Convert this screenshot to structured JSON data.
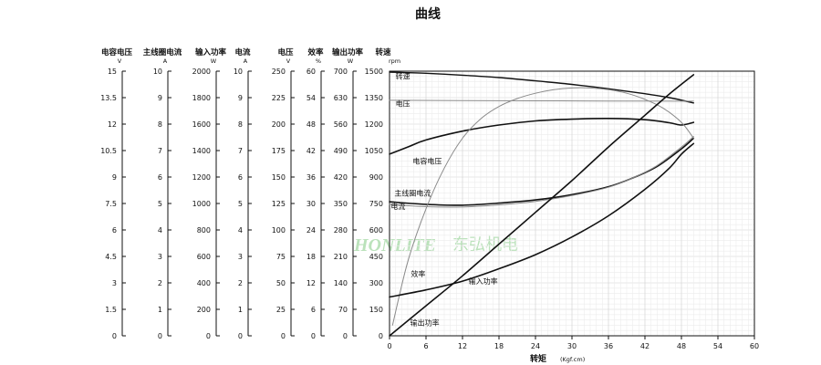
{
  "chart_data": {
    "type": "line",
    "title": "曲线",
    "watermark": {
      "brand": "HONLITE",
      "name": "东弘机电",
      "color": "#8fd08f"
    },
    "xlabel": "转矩",
    "xunit": "(Kgf.cm)",
    "xlim": [
      0,
      60
    ],
    "xticks": [
      "0",
      "6",
      "12",
      "18",
      "24",
      "30",
      "36",
      "42",
      "48",
      "54",
      "60"
    ],
    "grid": true,
    "axes": [
      {
        "name": "电容电压",
        "unit": "V",
        "max": 15,
        "ticks": [
          "0",
          "1.5",
          "3",
          "4.5",
          "6",
          "7.5",
          "9",
          "10.5",
          "12",
          "13.5",
          "15"
        ]
      },
      {
        "name": "主线圈电流",
        "unit": "A",
        "max": 10,
        "ticks": [
          "0",
          "1",
          "2",
          "3",
          "4",
          "5",
          "6",
          "7",
          "8",
          "9",
          "10"
        ]
      },
      {
        "name": "输入功率",
        "unit": "W",
        "max": 2000,
        "ticks": [
          "0",
          "200",
          "400",
          "600",
          "800",
          "1000",
          "1200",
          "1400",
          "1600",
          "1800",
          "2000"
        ]
      },
      {
        "name": "电流",
        "unit": "A",
        "max": 10,
        "ticks": [
          "0",
          "1",
          "2",
          "3",
          "4",
          "5",
          "6",
          "7",
          "8",
          "9",
          "10"
        ]
      },
      {
        "name": "电压",
        "unit": "V",
        "max": 250,
        "ticks": [
          "0",
          "25",
          "50",
          "75",
          "100",
          "125",
          "150",
          "175",
          "200",
          "225",
          "250"
        ]
      },
      {
        "name": "效率",
        "unit": "%",
        "max": 60,
        "ticks": [
          "0",
          "6",
          "12",
          "18",
          "24",
          "30",
          "36",
          "42",
          "48",
          "54",
          "60"
        ]
      },
      {
        "name": "输出功率",
        "unit": "W",
        "max": 700,
        "ticks": [
          "0",
          "70",
          "140",
          "210",
          "280",
          "350",
          "420",
          "490",
          "560",
          "630",
          "700"
        ]
      },
      {
        "name": "转速",
        "unit": "rpm",
        "max": 1500,
        "ticks": [
          "0",
          "150",
          "300",
          "450",
          "600",
          "750",
          "900",
          "1050",
          "1200",
          "1350",
          "1500"
        ]
      }
    ],
    "series": [
      {
        "name": "转速",
        "unit": "rpm",
        "color": "#111111",
        "width": 1.4,
        "x": [
          0,
          6,
          12,
          18,
          24,
          30,
          36,
          42,
          46,
          50
        ],
        "y": [
          1495,
          1488,
          1477,
          1464,
          1445,
          1425,
          1400,
          1372,
          1350,
          1320
        ]
      },
      {
        "name": "电压",
        "unit": "rpm",
        "color": "#8a8a8a",
        "width": 1.0,
        "x": [
          0,
          12,
          24,
          36,
          50
        ],
        "y": [
          1335,
          1333,
          1332,
          1331,
          1330
        ]
      },
      {
        "name": "电容电压",
        "unit": "rpm",
        "color": "#111111",
        "width": 1.6,
        "x": [
          0,
          3,
          6,
          12,
          18,
          24,
          30,
          36,
          42,
          46,
          48,
          50
        ],
        "y": [
          1030,
          1070,
          1110,
          1160,
          1195,
          1218,
          1228,
          1232,
          1225,
          1208,
          1195,
          1210
        ]
      },
      {
        "name": "主线圈电流",
        "unit": "rpm",
        "color": "#111111",
        "width": 1.6,
        "x": [
          0,
          6,
          12,
          18,
          24,
          30,
          36,
          40,
          44,
          48,
          50
        ],
        "y": [
          760,
          745,
          740,
          752,
          770,
          800,
          845,
          895,
          960,
          1060,
          1120
        ]
      },
      {
        "name": "电流",
        "unit": "rpm",
        "color": "#8a8a8a",
        "width": 1.0,
        "x": [
          0,
          6,
          12,
          18,
          24,
          30,
          36,
          40,
          44,
          48,
          50
        ],
        "y": [
          745,
          732,
          730,
          742,
          762,
          795,
          842,
          895,
          965,
          1070,
          1130
        ]
      },
      {
        "name": "效率",
        "unit": "rpm",
        "color": "#8a8a8a",
        "width": 1.0,
        "x": [
          0.5,
          3,
          6,
          9,
          12,
          15,
          18,
          21,
          24,
          27,
          30,
          33,
          36,
          39,
          42,
          45,
          48,
          50
        ],
        "y": [
          60,
          420,
          720,
          950,
          1120,
          1230,
          1300,
          1345,
          1375,
          1395,
          1405,
          1405,
          1395,
          1375,
          1340,
          1290,
          1210,
          1120
        ]
      },
      {
        "name": "输入功率",
        "unit": "rpm",
        "color": "#111111",
        "width": 1.6,
        "x": [
          0,
          6,
          12,
          18,
          24,
          30,
          36,
          42,
          46,
          48,
          50
        ],
        "y": [
          220,
          260,
          310,
          380,
          460,
          560,
          680,
          830,
          950,
          1030,
          1090
        ]
      },
      {
        "name": "输出功率",
        "unit": "rpm",
        "color": "#111111",
        "width": 1.6,
        "x": [
          0,
          6,
          12,
          18,
          24,
          30,
          36,
          42,
          46,
          50
        ],
        "y": [
          0,
          170,
          340,
          520,
          700,
          880,
          1070,
          1250,
          1370,
          1480
        ]
      }
    ],
    "curve_labels": [
      {
        "text": "转速",
        "x": 1,
        "y": 1455
      },
      {
        "text": "电压",
        "x": 1,
        "y": 1300
      },
      {
        "text": "电容电压",
        "x": 3.8,
        "y": 975
      },
      {
        "text": "主线圈电流",
        "x": 0.8,
        "y": 795
      },
      {
        "text": "电流",
        "x": 0.2,
        "y": 720
      },
      {
        "text": "效率",
        "x": 3.5,
        "y": 335
      },
      {
        "text": "输入功率",
        "x": 13,
        "y": 295
      },
      {
        "text": "输出功率",
        "x": 3.4,
        "y": 60
      }
    ]
  }
}
